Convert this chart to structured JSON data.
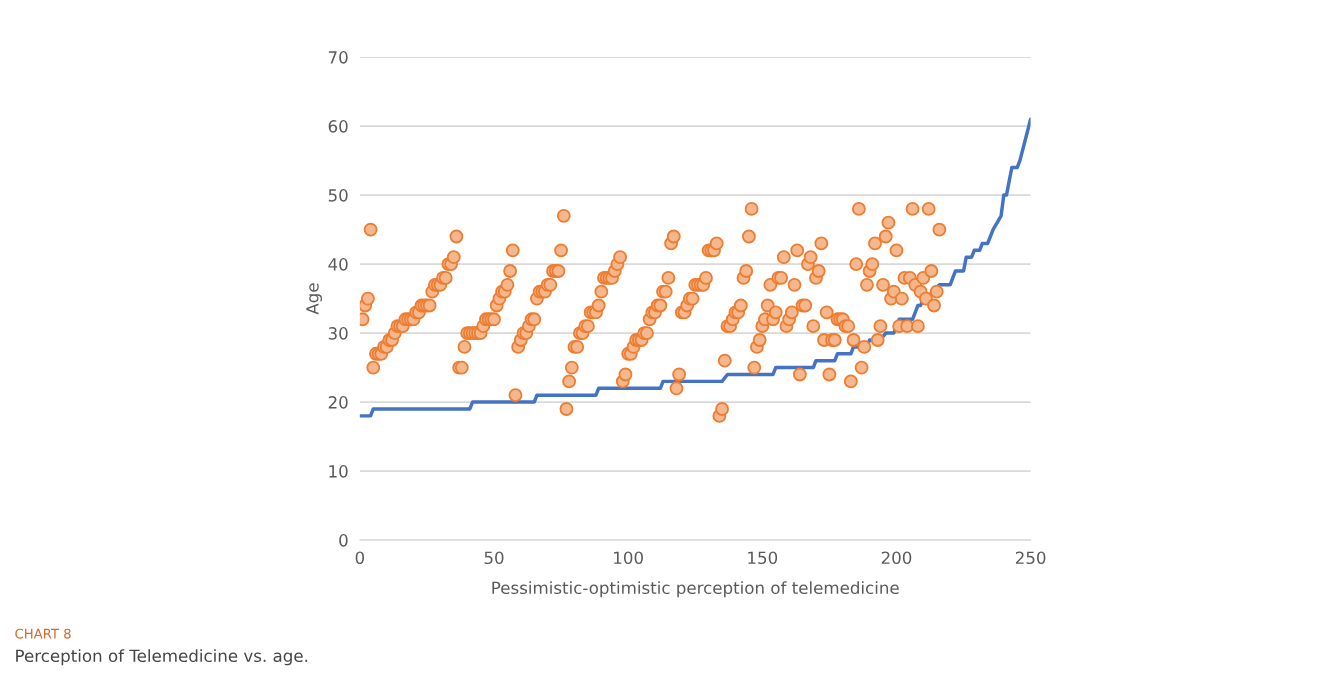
{
  "chart_data": {
    "type": "scatter",
    "xlabel": "Pessimistic-optimistic perception of telemedicine",
    "ylabel": "Age",
    "annotations": [
      "CHART 8",
      "Perception of Telemedicine vs. age."
    ],
    "xlim": [
      0,
      250
    ],
    "xticks": [
      0,
      50,
      100,
      150,
      200,
      250
    ],
    "ylim": [
      0,
      70
    ],
    "yticks": [
      0,
      10,
      20,
      30,
      40,
      50,
      60,
      70
    ],
    "grid": "y",
    "legend": false,
    "series": [
      {
        "marker": "circle",
        "color": "#ed7d31",
        "x": [
          1,
          2,
          3,
          4,
          5,
          6,
          7,
          8,
          9,
          10,
          11,
          12,
          13,
          14,
          15,
          16,
          17,
          18,
          19,
          20,
          21,
          22,
          23,
          24,
          25,
          26,
          27,
          28,
          29,
          30,
          31,
          32,
          33,
          34,
          35,
          36,
          37,
          38,
          39,
          40,
          41,
          42,
          43,
          44,
          45,
          46,
          47,
          48,
          49,
          50,
          51,
          52,
          53,
          54,
          55,
          56,
          57,
          58,
          59,
          60,
          61,
          62,
          63,
          64,
          65,
          66,
          67,
          68,
          69,
          70,
          71,
          72,
          73,
          74,
          75,
          76,
          77,
          78,
          79,
          80,
          81,
          82,
          83,
          84,
          85,
          86,
          87,
          88,
          89,
          90,
          91,
          92,
          93,
          94,
          95,
          96,
          97,
          98,
          99,
          100,
          101,
          102,
          103,
          104,
          105,
          106,
          107,
          108,
          109,
          110,
          111,
          112,
          113,
          114,
          115,
          116,
          117,
          118,
          119,
          120,
          121,
          122,
          123,
          124,
          125,
          126,
          127,
          128,
          129,
          130,
          131,
          132,
          133,
          134,
          135,
          136,
          137,
          138,
          139,
          140,
          141,
          142,
          143,
          144,
          145,
          146,
          147,
          148,
          149,
          150,
          151,
          152,
          153,
          154,
          155,
          156,
          157,
          158,
          159,
          160,
          161,
          162,
          163,
          164,
          165,
          166,
          167,
          168,
          169,
          170,
          171,
          172,
          173,
          174,
          175,
          176,
          177,
          178,
          179,
          180,
          181,
          182,
          183,
          184,
          185,
          186,
          187,
          188,
          189,
          190,
          191,
          192,
          193,
          194,
          195,
          196,
          197,
          198,
          199,
          200,
          201,
          202,
          203,
          204,
          205,
          206,
          207,
          208,
          209,
          210,
          211,
          212,
          213,
          214,
          215,
          216
        ],
        "values": [
          32,
          34,
          35,
          45,
          25,
          27,
          27,
          27,
          28,
          28,
          29,
          29,
          30,
          31,
          31,
          31,
          32,
          32,
          32,
          32,
          33,
          33,
          34,
          34,
          34,
          34,
          36,
          37,
          37,
          37,
          38,
          38,
          40,
          40,
          41,
          44,
          25,
          25,
          28,
          30,
          30,
          30,
          30,
          30,
          30,
          31,
          32,
          32,
          32,
          32,
          34,
          35,
          36,
          36,
          37,
          39,
          42,
          21,
          28,
          29,
          30,
          30,
          31,
          32,
          32,
          35,
          36,
          36,
          36,
          37,
          37,
          39,
          39,
          39,
          42,
          47,
          19,
          23,
          25,
          28,
          28,
          30,
          30,
          31,
          31,
          33,
          33,
          33,
          34,
          36,
          38,
          38,
          38,
          38,
          39,
          40,
          41,
          23,
          24,
          27,
          27,
          28,
          29,
          29,
          29,
          30,
          30,
          32,
          33,
          33,
          34,
          34,
          36,
          36,
          38,
          43,
          44,
          22,
          24,
          33,
          33,
          34,
          35,
          35,
          37,
          37,
          37,
          37,
          38,
          42,
          42,
          42,
          43,
          18,
          19,
          26,
          31,
          31,
          32,
          33,
          33,
          34,
          38,
          39,
          44,
          48,
          25,
          28,
          29,
          31,
          32,
          34,
          37,
          32,
          33,
          38,
          38,
          41,
          31,
          32,
          33,
          37,
          42,
          24,
          34,
          34,
          40,
          41,
          31,
          38,
          39,
          43,
          29,
          33,
          24,
          29,
          29,
          32,
          32,
          32,
          31,
          31,
          23,
          29,
          40,
          48,
          25,
          28,
          37,
          39,
          40,
          43,
          29,
          31,
          37,
          44,
          46,
          35,
          36,
          42,
          31,
          35,
          38,
          31,
          38,
          48,
          37,
          31,
          36,
          38,
          35,
          48,
          39,
          34,
          36,
          45
        ]
      },
      {
        "type": "line",
        "marker": "none",
        "color": "#4472c4",
        "x": [
          0,
          4,
          5,
          41,
          42,
          65,
          66,
          88,
          89,
          112,
          113,
          135,
          137,
          154,
          155,
          169,
          170,
          177,
          178,
          183,
          184,
          189,
          190,
          194,
          196,
          199,
          201,
          206,
          208,
          209,
          210,
          211,
          216,
          220,
          222,
          225,
          226,
          228,
          229,
          231,
          232,
          234,
          236,
          239,
          240,
          241,
          243,
          245,
          246,
          250
        ],
        "values": [
          18,
          18,
          19,
          19,
          20,
          20,
          21,
          21,
          22,
          22,
          23,
          23,
          24,
          24,
          25,
          25,
          26,
          26,
          27,
          27,
          28,
          28,
          29,
          29,
          30,
          30,
          32,
          32,
          34,
          34,
          35,
          35,
          37,
          37,
          39,
          39,
          41,
          41,
          42,
          42,
          43,
          43,
          45,
          47,
          50,
          50,
          54,
          54,
          55,
          61
        ]
      }
    ]
  }
}
